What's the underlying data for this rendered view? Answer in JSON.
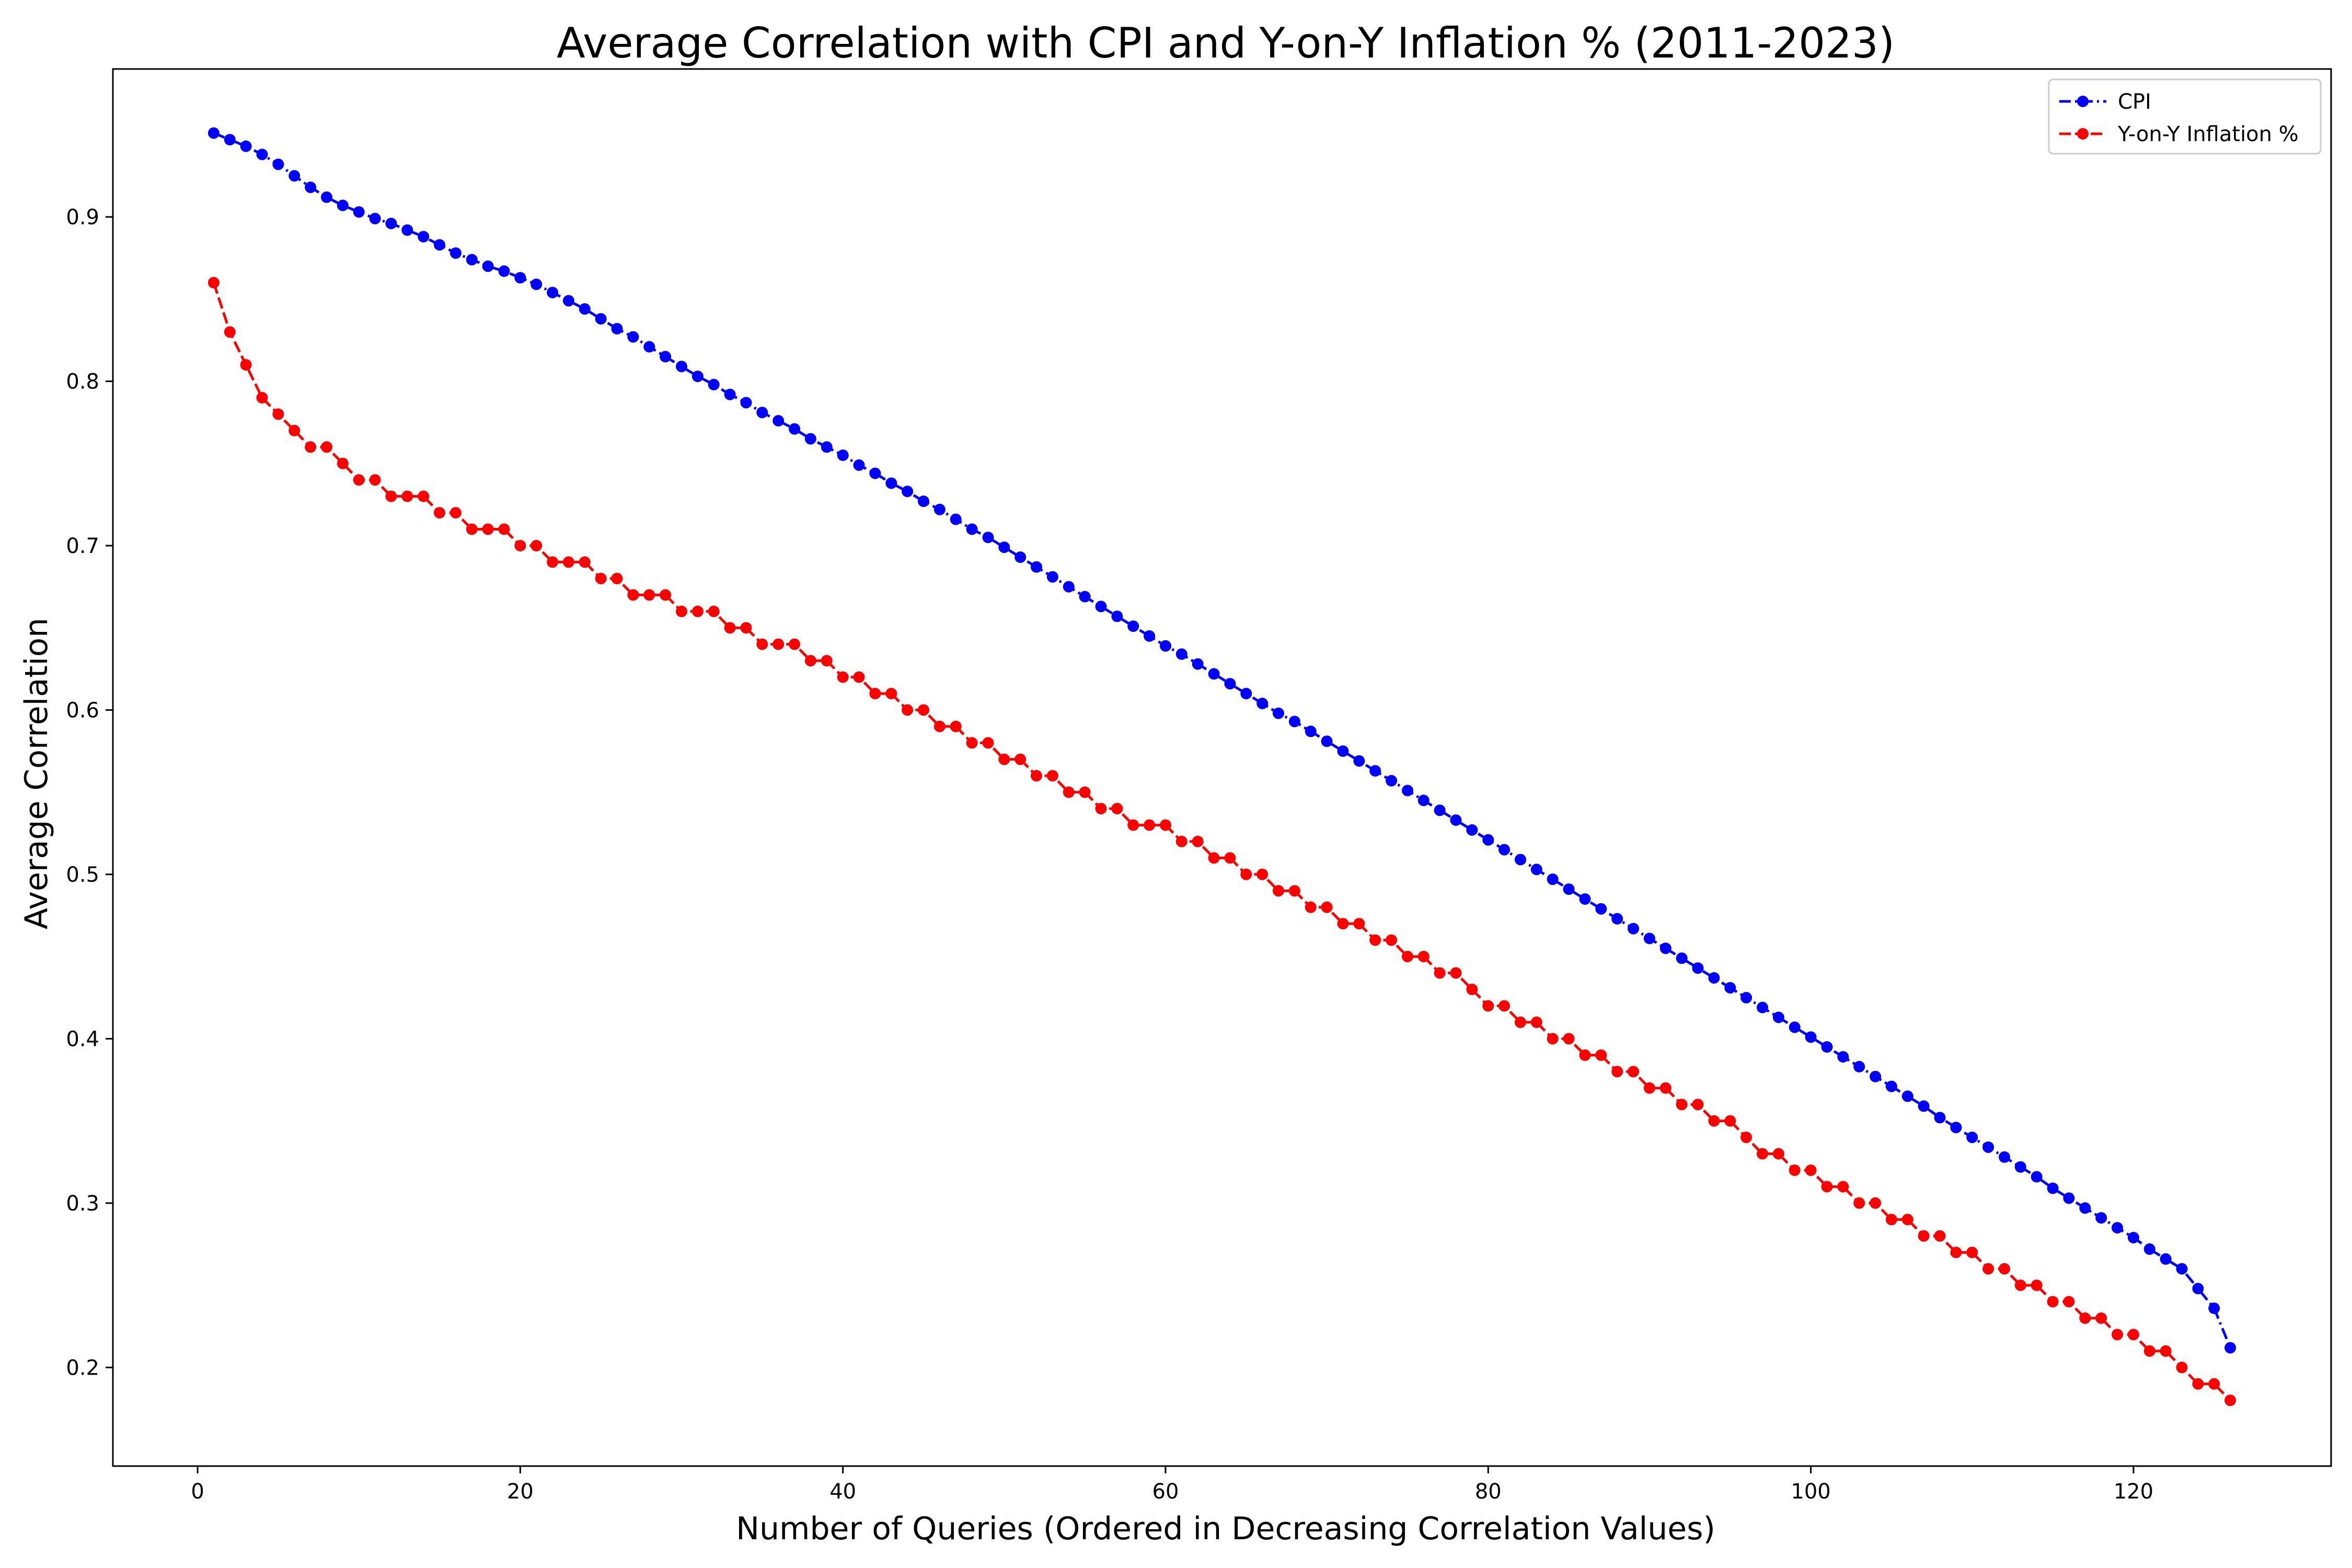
{
  "chart_data": {
    "type": "line",
    "title": "Average Correlation with CPI and Y-on-Y Inflation % (2011-2023)",
    "xlabel": "Number of Queries (Ordered in Decreasing Correlation Values)",
    "ylabel": "Average Correlation",
    "xlim": [
      -5.25,
      132.25
    ],
    "ylim": [
      0.14,
      0.99
    ],
    "xticks": [
      0,
      20,
      40,
      60,
      80,
      100,
      120
    ],
    "yticks": [
      0.2,
      0.3,
      0.4,
      0.5,
      0.6,
      0.7,
      0.8,
      0.9
    ],
    "ytick_labels": [
      "0.2",
      "0.3",
      "0.4",
      "0.5",
      "0.6",
      "0.7",
      "0.8",
      "0.9"
    ],
    "grid": false,
    "legend_position": "top-right",
    "x": [
      1,
      2,
      3,
      4,
      5,
      6,
      7,
      8,
      9,
      10,
      11,
      12,
      13,
      14,
      15,
      16,
      17,
      18,
      19,
      20,
      21,
      22,
      23,
      24,
      25,
      26,
      27,
      28,
      29,
      30,
      31,
      32,
      33,
      34,
      35,
      36,
      37,
      38,
      39,
      40,
      41,
      42,
      43,
      44,
      45,
      46,
      47,
      48,
      49,
      50,
      51,
      52,
      53,
      54,
      55,
      56,
      57,
      58,
      59,
      60,
      61,
      62,
      63,
      64,
      65,
      66,
      67,
      68,
      69,
      70,
      71,
      72,
      73,
      74,
      75,
      76,
      77,
      78,
      79,
      80,
      81,
      82,
      83,
      84,
      85,
      86,
      87,
      88,
      89,
      90,
      91,
      92,
      93,
      94,
      95,
      96,
      97,
      98,
      99,
      100,
      101,
      102,
      103,
      104,
      105,
      106,
      107,
      108,
      109,
      110,
      111,
      112,
      113,
      114,
      115,
      116,
      117,
      118,
      119,
      120,
      121,
      122,
      123,
      124,
      125,
      126
    ],
    "series": [
      {
        "name": "CPI",
        "color": "#0000ff",
        "values": [
          0.951,
          0.947,
          0.943,
          0.938,
          0.932,
          0.925,
          0.918,
          0.912,
          0.907,
          0.903,
          0.899,
          0.896,
          0.892,
          0.888,
          0.883,
          0.878,
          0.874,
          0.87,
          0.867,
          0.863,
          0.859,
          0.854,
          0.849,
          0.844,
          0.838,
          0.832,
          0.827,
          0.821,
          0.815,
          0.809,
          0.803,
          0.798,
          0.792,
          0.787,
          0.781,
          0.776,
          0.771,
          0.765,
          0.76,
          0.755,
          0.749,
          0.744,
          0.738,
          0.733,
          0.727,
          0.722,
          0.716,
          0.71,
          0.705,
          0.699,
          0.693,
          0.687,
          0.681,
          0.675,
          0.669,
          0.663,
          0.657,
          0.651,
          0.645,
          0.639,
          0.634,
          0.628,
          0.622,
          0.616,
          0.61,
          0.604,
          0.598,
          0.593,
          0.587,
          0.581,
          0.575,
          0.569,
          0.563,
          0.557,
          0.551,
          0.545,
          0.539,
          0.533,
          0.527,
          0.521,
          0.515,
          0.509,
          0.503,
          0.497,
          0.491,
          0.485,
          0.479,
          0.473,
          0.467,
          0.461,
          0.455,
          0.449,
          0.443,
          0.437,
          0.431,
          0.425,
          0.419,
          0.413,
          0.407,
          0.401,
          0.395,
          0.389,
          0.383,
          0.377,
          0.371,
          0.365,
          0.359,
          0.352,
          0.346,
          0.34,
          0.334,
          0.328,
          0.322,
          0.316,
          0.309,
          0.303,
          0.297,
          0.291,
          0.285,
          0.279,
          0.272,
          0.266,
          0.26,
          0.248,
          0.236,
          0.212
        ]
      },
      {
        "name": "Y-on-Y Inflation %",
        "color": "#ff0000",
        "values": [
          0.86,
          0.83,
          0.81,
          0.79,
          0.78,
          0.77,
          0.76,
          0.76,
          0.75,
          0.74,
          0.74,
          0.73,
          0.73,
          0.73,
          0.72,
          0.72,
          0.71,
          0.71,
          0.71,
          0.7,
          0.7,
          0.69,
          0.69,
          0.69,
          0.68,
          0.68,
          0.67,
          0.67,
          0.67,
          0.66,
          0.66,
          0.66,
          0.65,
          0.65,
          0.64,
          0.64,
          0.64,
          0.63,
          0.63,
          0.62,
          0.62,
          0.61,
          0.61,
          0.6,
          0.6,
          0.59,
          0.59,
          0.58,
          0.58,
          0.57,
          0.57,
          0.56,
          0.56,
          0.55,
          0.55,
          0.54,
          0.54,
          0.53,
          0.53,
          0.53,
          0.52,
          0.52,
          0.51,
          0.51,
          0.5,
          0.5,
          0.49,
          0.49,
          0.48,
          0.48,
          0.47,
          0.47,
          0.46,
          0.46,
          0.45,
          0.45,
          0.44,
          0.44,
          0.43,
          0.42,
          0.42,
          0.41,
          0.41,
          0.4,
          0.4,
          0.39,
          0.39,
          0.38,
          0.38,
          0.37,
          0.37,
          0.36,
          0.36,
          0.35,
          0.35,
          0.34,
          0.33,
          0.33,
          0.32,
          0.32,
          0.31,
          0.31,
          0.3,
          0.3,
          0.29,
          0.29,
          0.28,
          0.28,
          0.27,
          0.27,
          0.26,
          0.26,
          0.25,
          0.25,
          0.24,
          0.24,
          0.23,
          0.23,
          0.22,
          0.22,
          0.21,
          0.21,
          0.2,
          0.19,
          0.19,
          0.18
        ]
      }
    ]
  }
}
